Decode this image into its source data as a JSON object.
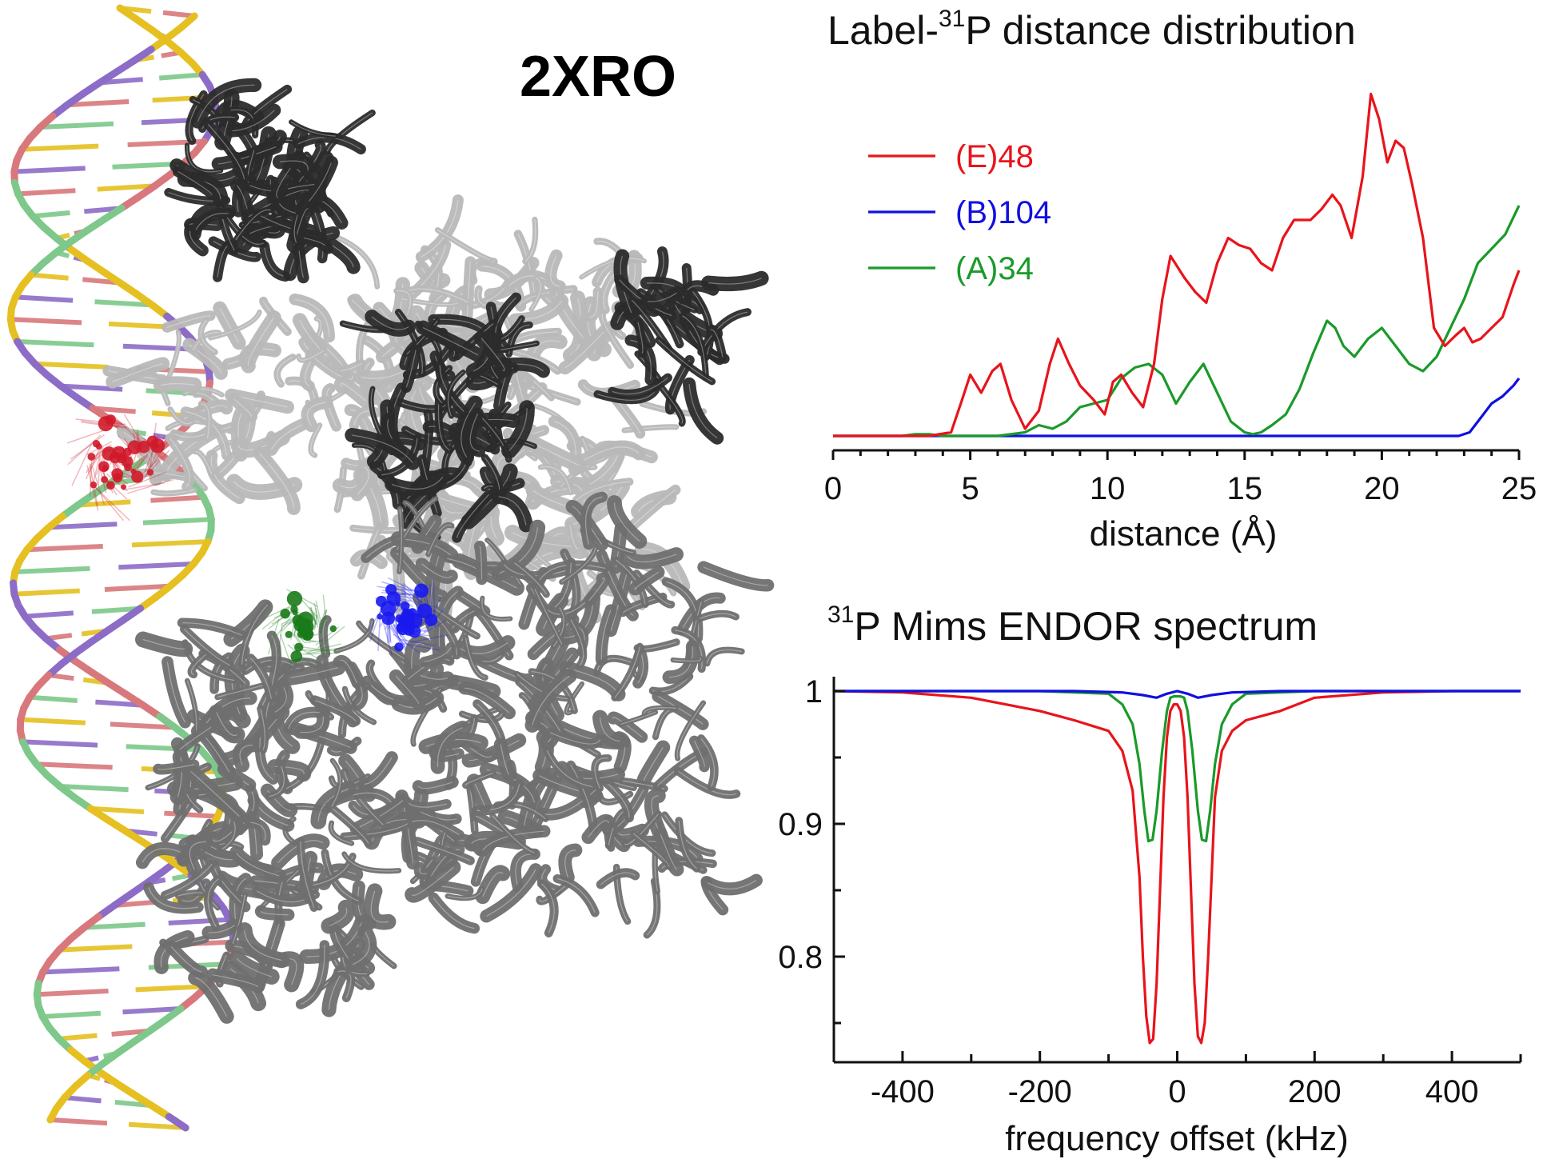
{
  "structure": {
    "pdb_label": "2XRO",
    "colors": {
      "dna_strand": [
        "#e5c020",
        "#8c6cc6",
        "#d8787c",
        "#7dc88a"
      ],
      "protein_dark": "#2b2b2b",
      "protein_mid": "#6f6f6f",
      "protein_light": "#b8b8b8",
      "label_E48": "#d01a2a",
      "label_A34": "#1a7a1a",
      "label_B104": "#1a1aee"
    }
  },
  "chart_data": [
    {
      "type": "line",
      "title": "Label-31P distance distribution",
      "title_parts": {
        "prefix": "Label-",
        "sup": "31",
        "suffix": "P distance distribution"
      },
      "xlabel": "distance (Å)",
      "ylabel": "",
      "xlim": [
        0,
        25
      ],
      "xticks": [
        0,
        5,
        10,
        15,
        20,
        25
      ],
      "ylim": [
        0,
        1
      ],
      "y_axis_shown": false,
      "grid": false,
      "legend_position": "top-left",
      "series": [
        {
          "name": "(E)48",
          "color": "#e8141b",
          "x": [
            0,
            3.5,
            4.3,
            4.7,
            5.0,
            5.4,
            5.8,
            6.1,
            6.5,
            7.0,
            7.5,
            7.9,
            8.2,
            8.6,
            9.0,
            9.5,
            9.9,
            10.2,
            10.5,
            10.9,
            11.3,
            11.7,
            12.0,
            12.3,
            12.8,
            13.2,
            13.6,
            14.0,
            14.4,
            14.8,
            15.2,
            15.6,
            16.0,
            16.4,
            16.8,
            17.4,
            17.8,
            18.2,
            18.5,
            18.9,
            19.3,
            19.6,
            19.9,
            20.2,
            20.5,
            20.8,
            21.1,
            21.5,
            21.9,
            22.3,
            22.7,
            23.0,
            23.3,
            23.6,
            24.0,
            24.4,
            24.8,
            25.0
          ],
          "y": [
            0,
            0,
            0.01,
            0.1,
            0.17,
            0.12,
            0.18,
            0.2,
            0.1,
            0.02,
            0.07,
            0.2,
            0.27,
            0.2,
            0.14,
            0.1,
            0.06,
            0.15,
            0.17,
            0.12,
            0.08,
            0.2,
            0.38,
            0.5,
            0.44,
            0.4,
            0.37,
            0.48,
            0.55,
            0.53,
            0.52,
            0.48,
            0.46,
            0.55,
            0.6,
            0.6,
            0.63,
            0.67,
            0.64,
            0.55,
            0.72,
            0.95,
            0.88,
            0.76,
            0.82,
            0.8,
            0.7,
            0.55,
            0.3,
            0.25,
            0.28,
            0.3,
            0.26,
            0.27,
            0.3,
            0.33,
            0.42,
            0.46
          ]
        },
        {
          "name": "(B)104",
          "color": "#1010e0",
          "x": [
            0,
            5,
            10,
            15,
            20,
            22.8,
            23.2,
            23.6,
            24.0,
            24.4,
            24.8,
            25.0
          ],
          "y": [
            0,
            0,
            0,
            0,
            0,
            0,
            0.01,
            0.05,
            0.09,
            0.11,
            0.14,
            0.16
          ]
        },
        {
          "name": "(A)34",
          "color": "#1a9a2a",
          "x": [
            0,
            2.5,
            3.0,
            3.5,
            4.0,
            5.0,
            6.0,
            7.0,
            7.5,
            8.0,
            8.5,
            9.0,
            9.5,
            10.0,
            10.5,
            11.0,
            11.5,
            12.0,
            12.5,
            13.0,
            13.5,
            14.0,
            14.5,
            15.0,
            15.3,
            15.6,
            16.0,
            16.5,
            17.0,
            17.5,
            18.0,
            18.3,
            18.6,
            19.0,
            19.5,
            20.0,
            20.5,
            21.0,
            21.5,
            22.0,
            22.5,
            23.0,
            23.5,
            24.0,
            24.5,
            25.0
          ],
          "y": [
            0,
            0,
            0.005,
            0.005,
            0,
            0,
            0,
            0.01,
            0.03,
            0.02,
            0.04,
            0.08,
            0.09,
            0.1,
            0.16,
            0.19,
            0.2,
            0.17,
            0.09,
            0.15,
            0.2,
            0.12,
            0.04,
            0.01,
            0.005,
            0.01,
            0.03,
            0.06,
            0.13,
            0.23,
            0.32,
            0.3,
            0.25,
            0.22,
            0.27,
            0.3,
            0.25,
            0.2,
            0.18,
            0.22,
            0.3,
            0.38,
            0.48,
            0.52,
            0.56,
            0.64
          ]
        }
      ]
    },
    {
      "type": "line",
      "title": "31P Mims ENDOR spectrum",
      "title_parts": {
        "prefix": "",
        "sup": "31",
        "suffix": "P Mims ENDOR spectrum"
      },
      "xlabel": "frequency offset (kHz)",
      "ylabel": "",
      "xlim": [
        -500,
        500
      ],
      "xticks": [
        -400,
        -200,
        0,
        200,
        400
      ],
      "x_minor_ticks": [
        -500,
        -300,
        -100,
        100,
        300,
        500
      ],
      "ylim": [
        0.72,
        1.01
      ],
      "yticks": [
        0.8,
        0.9,
        1
      ],
      "ytick_labels": [
        "0.8",
        "0.9",
        "1"
      ],
      "grid": false,
      "series": [
        {
          "name": "(E)48",
          "color": "#e8141b",
          "x": [
            -500,
            -400,
            -300,
            -200,
            -150,
            -100,
            -80,
            -65,
            -55,
            -50,
            -45,
            -40,
            -35,
            -30,
            -25,
            -20,
            -15,
            -10,
            -5,
            0,
            5,
            10,
            15,
            20,
            25,
            30,
            35,
            40,
            45,
            50,
            55,
            65,
            80,
            100,
            150,
            200,
            300,
            400,
            500
          ],
          "y": [
            1.0,
            0.999,
            0.995,
            0.985,
            0.978,
            0.97,
            0.955,
            0.925,
            0.86,
            0.8,
            0.755,
            0.735,
            0.738,
            0.78,
            0.85,
            0.92,
            0.965,
            0.985,
            0.99,
            0.99,
            0.985,
            0.965,
            0.92,
            0.85,
            0.78,
            0.74,
            0.735,
            0.75,
            0.8,
            0.86,
            0.92,
            0.955,
            0.97,
            0.978,
            0.985,
            0.995,
            0.999,
            1.0,
            1.0
          ]
        },
        {
          "name": "(A)34",
          "color": "#1a9a2a",
          "x": [
            -500,
            -200,
            -100,
            -80,
            -65,
            -55,
            -48,
            -42,
            -36,
            -30,
            -22,
            -15,
            -10,
            -5,
            0,
            5,
            10,
            15,
            22,
            30,
            36,
            42,
            48,
            55,
            65,
            80,
            100,
            200,
            500
          ],
          "y": [
            1.0,
            1.0,
            0.998,
            0.99,
            0.975,
            0.945,
            0.91,
            0.887,
            0.888,
            0.91,
            0.955,
            0.985,
            0.995,
            0.996,
            0.996,
            0.996,
            0.995,
            0.985,
            0.955,
            0.91,
            0.888,
            0.887,
            0.91,
            0.945,
            0.975,
            0.99,
            0.998,
            1.0,
            1.0
          ]
        },
        {
          "name": "(B)104",
          "color": "#1010e0",
          "x": [
            -500,
            -150,
            -80,
            -50,
            -30,
            -15,
            0,
            15,
            30,
            50,
            80,
            150,
            500
          ],
          "y": [
            1.0,
            1.0,
            0.999,
            0.997,
            0.995,
            0.998,
            1.0,
            0.998,
            0.995,
            0.997,
            0.999,
            1.0,
            1.0
          ]
        }
      ]
    }
  ]
}
